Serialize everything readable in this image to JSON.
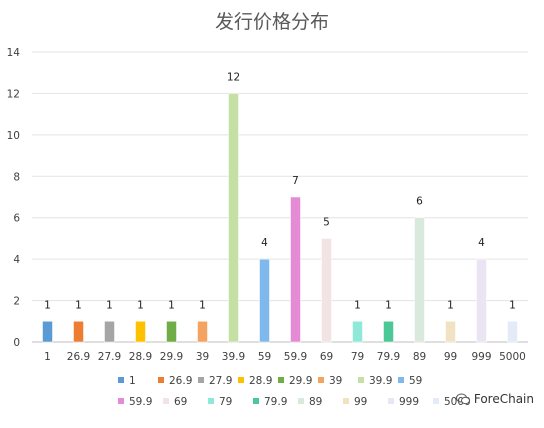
{
  "chart_data": {
    "type": "bar",
    "title": "发行价格分布",
    "categories": [
      "1",
      "26.9",
      "27.9",
      "28.9",
      "29.9",
      "39",
      "39.9",
      "59",
      "59.9",
      "69",
      "79",
      "79.9",
      "89",
      "99",
      "999",
      "5000"
    ],
    "values": [
      1,
      1,
      1,
      1,
      1,
      1,
      12,
      4,
      7,
      5,
      1,
      1,
      6,
      1,
      4,
      1
    ],
    "colors": [
      "#5b9bd5",
      "#ed7d31",
      "#a5a5a5",
      "#ffc000",
      "#70ad47",
      "#f4a460",
      "#c5e0a5",
      "#7fb8ec",
      "#e58ad4",
      "#f2e4e4",
      "#8fe8d8",
      "#4cc796",
      "#d9e9dc",
      "#f0e2c2",
      "#ebe4f2",
      "#e4eaf8"
    ],
    "ylim": [
      0,
      14
    ],
    "yticks": [
      0,
      2,
      4,
      6,
      8,
      10,
      12,
      14
    ],
    "grid": true,
    "legend_position": "bottom"
  },
  "watermark": {
    "text": "ForeChain",
    "icon": "wechat-icon"
  }
}
